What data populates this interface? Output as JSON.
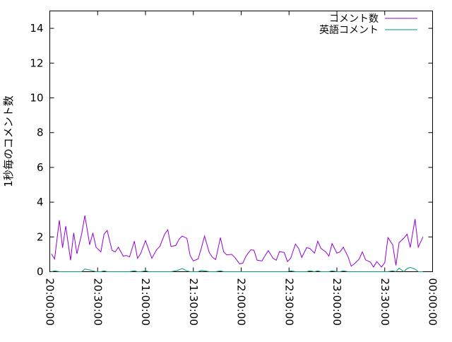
{
  "chart_data": {
    "type": "line",
    "title": "",
    "xlabel": "",
    "ylabel": "1秒毎のコメント数",
    "ylim": [
      0,
      15
    ],
    "yticks": [
      "0",
      "2",
      "4",
      "6",
      "8",
      "10",
      "12",
      "14"
    ],
    "xlim": [
      "20:00:00",
      "00:00:00"
    ],
    "xticks": [
      "20:00:00",
      "20:30:00",
      "21:00:00",
      "21:30:00",
      "22:00:00",
      "22:30:00",
      "23:00:00",
      "23:30:00",
      "00:00:00"
    ],
    "grid": false,
    "legend": "top-right",
    "x": [
      "20:01",
      "20:03",
      "20:06",
      "20:08",
      "20:10",
      "20:13",
      "20:15",
      "20:17",
      "20:20",
      "20:22",
      "20:25",
      "20:27",
      "20:29",
      "20:32",
      "20:34",
      "20:36",
      "20:39",
      "20:41",
      "20:43",
      "20:46",
      "20:48",
      "20:50",
      "20:53",
      "20:55",
      "20:57",
      "21:00",
      "21:02",
      "21:04",
      "21:07",
      "21:09",
      "21:12",
      "21:14",
      "21:16",
      "21:19",
      "21:21",
      "21:23",
      "21:26",
      "21:28",
      "21:30",
      "21:33",
      "21:35",
      "21:37",
      "21:40",
      "21:42",
      "21:44",
      "21:47",
      "21:49",
      "21:51",
      "21:54",
      "21:56",
      "21:59",
      "22:01",
      "22:03",
      "22:06",
      "22:08",
      "22:10",
      "22:13",
      "22:15",
      "22:17",
      "22:20",
      "22:22",
      "22:24",
      "22:27",
      "22:29",
      "22:31",
      "22:34",
      "22:36",
      "22:38",
      "22:41",
      "22:43",
      "22:46",
      "22:48",
      "22:50",
      "22:53",
      "22:55",
      "22:57",
      "23:00",
      "23:02",
      "23:04",
      "23:07",
      "23:09",
      "23:11",
      "23:14",
      "23:16",
      "23:18",
      "23:21",
      "23:23",
      "23:25",
      "23:28",
      "23:30",
      "23:32",
      "23:35",
      "23:37",
      "23:39",
      "23:42",
      "23:44",
      "23:46",
      "23:49",
      "23:51",
      "23:54"
    ],
    "series": [
      {
        "name": "コメント数",
        "color": "#9400d3",
        "values": [
          1.03,
          0.73,
          2.96,
          1.38,
          2.62,
          0.66,
          2.23,
          1.03,
          2.19,
          3.23,
          1.55,
          2.23,
          1.41,
          1.14,
          2.16,
          2.37,
          1.23,
          1.14,
          1.41,
          0.9,
          0.93,
          0.85,
          1.75,
          0.77,
          1.04,
          1.79,
          1.27,
          0.77,
          1.27,
          1.45,
          2.16,
          2.41,
          1.45,
          1.51,
          1.86,
          2.05,
          1.92,
          0.93,
          0.62,
          0.73,
          1.34,
          2.05,
          1.1,
          0.82,
          0.7,
          1.96,
          1.14,
          0.96,
          1.0,
          0.82,
          0.45,
          0.49,
          0.9,
          1.26,
          1.23,
          0.66,
          0.62,
          0.93,
          1.21,
          0.77,
          0.66,
          1.16,
          1.1,
          0.58,
          0.77,
          1.59,
          1.34,
          0.82,
          1.38,
          1.34,
          1.07,
          1.75,
          1.34,
          1.14,
          0.9,
          1.62,
          1.07,
          1.14,
          1.41,
          0.86,
          0.32,
          0.45,
          0.73,
          1.14,
          0.68,
          0.55,
          0.27,
          0.58,
          0.27,
          0.52,
          1.96,
          1.55,
          0.36,
          1.68,
          1.93,
          2.16,
          1.4,
          3.03,
          1.41,
          2.0
        ]
      },
      {
        "name": "英語コメント",
        "color": "#009e73",
        "values": [
          0,
          0.05,
          0,
          0,
          0,
          0,
          0,
          0,
          0,
          0.15,
          0.1,
          0.05,
          0,
          0,
          0.05,
          0,
          0,
          0,
          0,
          0,
          0,
          0,
          0.05,
          0,
          0,
          0.05,
          0,
          0,
          0,
          0,
          0,
          0,
          0,
          0.05,
          0.1,
          0.18,
          0.05,
          0,
          0,
          0,
          0.08,
          0.05,
          0,
          0,
          0,
          0.05,
          0,
          0,
          0,
          0,
          0,
          0,
          0,
          0,
          0,
          0,
          0,
          0,
          0,
          0,
          0,
          0,
          0,
          0,
          0.05,
          0,
          0,
          0,
          0,
          0.05,
          0,
          0.05,
          0,
          0,
          0,
          0.05,
          0,
          0,
          0.05,
          0,
          0,
          0,
          0,
          0,
          0,
          0,
          0,
          0,
          0,
          0,
          0,
          0.05,
          0,
          0.2,
          0,
          0.18,
          0.25,
          0.15,
          0,
          0
        ]
      }
    ]
  }
}
